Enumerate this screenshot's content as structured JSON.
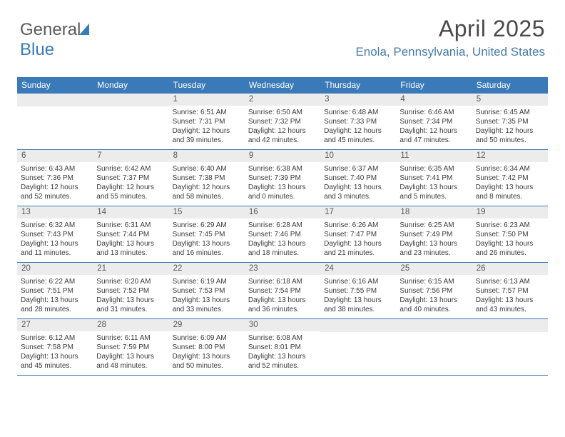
{
  "logo": {
    "part1": "General",
    "part2": "Blue"
  },
  "header": {
    "month_title": "April 2025",
    "location": "Enola, Pennsylvania, United States"
  },
  "colors": {
    "header_bar": "#3a7ab8",
    "daynum_bg": "#ececec",
    "location_text": "#4a7ba6",
    "border": "#3a7ab8"
  },
  "day_names": [
    "Sunday",
    "Monday",
    "Tuesday",
    "Wednesday",
    "Thursday",
    "Friday",
    "Saturday"
  ],
  "weeks": [
    [
      {
        "n": "",
        "sr": "",
        "ss": "",
        "dl1": "",
        "dl2": ""
      },
      {
        "n": "",
        "sr": "",
        "ss": "",
        "dl1": "",
        "dl2": ""
      },
      {
        "n": "1",
        "sr": "Sunrise: 6:51 AM",
        "ss": "Sunset: 7:31 PM",
        "dl1": "Daylight: 12 hours",
        "dl2": "and 39 minutes."
      },
      {
        "n": "2",
        "sr": "Sunrise: 6:50 AM",
        "ss": "Sunset: 7:32 PM",
        "dl1": "Daylight: 12 hours",
        "dl2": "and 42 minutes."
      },
      {
        "n": "3",
        "sr": "Sunrise: 6:48 AM",
        "ss": "Sunset: 7:33 PM",
        "dl1": "Daylight: 12 hours",
        "dl2": "and 45 minutes."
      },
      {
        "n": "4",
        "sr": "Sunrise: 6:46 AM",
        "ss": "Sunset: 7:34 PM",
        "dl1": "Daylight: 12 hours",
        "dl2": "and 47 minutes."
      },
      {
        "n": "5",
        "sr": "Sunrise: 6:45 AM",
        "ss": "Sunset: 7:35 PM",
        "dl1": "Daylight: 12 hours",
        "dl2": "and 50 minutes."
      }
    ],
    [
      {
        "n": "6",
        "sr": "Sunrise: 6:43 AM",
        "ss": "Sunset: 7:36 PM",
        "dl1": "Daylight: 12 hours",
        "dl2": "and 52 minutes."
      },
      {
        "n": "7",
        "sr": "Sunrise: 6:42 AM",
        "ss": "Sunset: 7:37 PM",
        "dl1": "Daylight: 12 hours",
        "dl2": "and 55 minutes."
      },
      {
        "n": "8",
        "sr": "Sunrise: 6:40 AM",
        "ss": "Sunset: 7:38 PM",
        "dl1": "Daylight: 12 hours",
        "dl2": "and 58 minutes."
      },
      {
        "n": "9",
        "sr": "Sunrise: 6:38 AM",
        "ss": "Sunset: 7:39 PM",
        "dl1": "Daylight: 13 hours",
        "dl2": "and 0 minutes."
      },
      {
        "n": "10",
        "sr": "Sunrise: 6:37 AM",
        "ss": "Sunset: 7:40 PM",
        "dl1": "Daylight: 13 hours",
        "dl2": "and 3 minutes."
      },
      {
        "n": "11",
        "sr": "Sunrise: 6:35 AM",
        "ss": "Sunset: 7:41 PM",
        "dl1": "Daylight: 13 hours",
        "dl2": "and 5 minutes."
      },
      {
        "n": "12",
        "sr": "Sunrise: 6:34 AM",
        "ss": "Sunset: 7:42 PM",
        "dl1": "Daylight: 13 hours",
        "dl2": "and 8 minutes."
      }
    ],
    [
      {
        "n": "13",
        "sr": "Sunrise: 6:32 AM",
        "ss": "Sunset: 7:43 PM",
        "dl1": "Daylight: 13 hours",
        "dl2": "and 11 minutes."
      },
      {
        "n": "14",
        "sr": "Sunrise: 6:31 AM",
        "ss": "Sunset: 7:44 PM",
        "dl1": "Daylight: 13 hours",
        "dl2": "and 13 minutes."
      },
      {
        "n": "15",
        "sr": "Sunrise: 6:29 AM",
        "ss": "Sunset: 7:45 PM",
        "dl1": "Daylight: 13 hours",
        "dl2": "and 16 minutes."
      },
      {
        "n": "16",
        "sr": "Sunrise: 6:28 AM",
        "ss": "Sunset: 7:46 PM",
        "dl1": "Daylight: 13 hours",
        "dl2": "and 18 minutes."
      },
      {
        "n": "17",
        "sr": "Sunrise: 6:26 AM",
        "ss": "Sunset: 7:47 PM",
        "dl1": "Daylight: 13 hours",
        "dl2": "and 21 minutes."
      },
      {
        "n": "18",
        "sr": "Sunrise: 6:25 AM",
        "ss": "Sunset: 7:49 PM",
        "dl1": "Daylight: 13 hours",
        "dl2": "and 23 minutes."
      },
      {
        "n": "19",
        "sr": "Sunrise: 6:23 AM",
        "ss": "Sunset: 7:50 PM",
        "dl1": "Daylight: 13 hours",
        "dl2": "and 26 minutes."
      }
    ],
    [
      {
        "n": "20",
        "sr": "Sunrise: 6:22 AM",
        "ss": "Sunset: 7:51 PM",
        "dl1": "Daylight: 13 hours",
        "dl2": "and 28 minutes."
      },
      {
        "n": "21",
        "sr": "Sunrise: 6:20 AM",
        "ss": "Sunset: 7:52 PM",
        "dl1": "Daylight: 13 hours",
        "dl2": "and 31 minutes."
      },
      {
        "n": "22",
        "sr": "Sunrise: 6:19 AM",
        "ss": "Sunset: 7:53 PM",
        "dl1": "Daylight: 13 hours",
        "dl2": "and 33 minutes."
      },
      {
        "n": "23",
        "sr": "Sunrise: 6:18 AM",
        "ss": "Sunset: 7:54 PM",
        "dl1": "Daylight: 13 hours",
        "dl2": "and 36 minutes."
      },
      {
        "n": "24",
        "sr": "Sunrise: 6:16 AM",
        "ss": "Sunset: 7:55 PM",
        "dl1": "Daylight: 13 hours",
        "dl2": "and 38 minutes."
      },
      {
        "n": "25",
        "sr": "Sunrise: 6:15 AM",
        "ss": "Sunset: 7:56 PM",
        "dl1": "Daylight: 13 hours",
        "dl2": "and 40 minutes."
      },
      {
        "n": "26",
        "sr": "Sunrise: 6:13 AM",
        "ss": "Sunset: 7:57 PM",
        "dl1": "Daylight: 13 hours",
        "dl2": "and 43 minutes."
      }
    ],
    [
      {
        "n": "27",
        "sr": "Sunrise: 6:12 AM",
        "ss": "Sunset: 7:58 PM",
        "dl1": "Daylight: 13 hours",
        "dl2": "and 45 minutes."
      },
      {
        "n": "28",
        "sr": "Sunrise: 6:11 AM",
        "ss": "Sunset: 7:59 PM",
        "dl1": "Daylight: 13 hours",
        "dl2": "and 48 minutes."
      },
      {
        "n": "29",
        "sr": "Sunrise: 6:09 AM",
        "ss": "Sunset: 8:00 PM",
        "dl1": "Daylight: 13 hours",
        "dl2": "and 50 minutes."
      },
      {
        "n": "30",
        "sr": "Sunrise: 6:08 AM",
        "ss": "Sunset: 8:01 PM",
        "dl1": "Daylight: 13 hours",
        "dl2": "and 52 minutes."
      },
      {
        "n": "",
        "sr": "",
        "ss": "",
        "dl1": "",
        "dl2": ""
      },
      {
        "n": "",
        "sr": "",
        "ss": "",
        "dl1": "",
        "dl2": ""
      },
      {
        "n": "",
        "sr": "",
        "ss": "",
        "dl1": "",
        "dl2": ""
      }
    ]
  ]
}
